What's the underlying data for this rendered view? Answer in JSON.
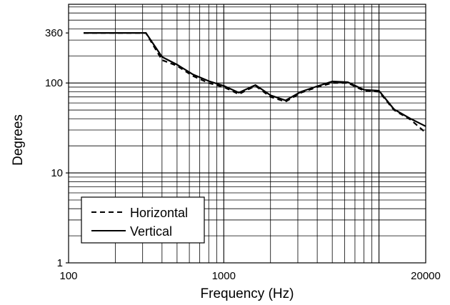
{
  "chart_data": {
    "type": "line",
    "title": "",
    "xlabel": "Frequency (Hz)",
    "ylabel": "Degrees",
    "x_scale": "log",
    "y_scale": "log",
    "xlim": [
      100,
      20000
    ],
    "ylim": [
      1,
      750
    ],
    "x_ticks": [
      {
        "value": 100,
        "label": "100"
      },
      {
        "value": 1000,
        "label": "1000"
      },
      {
        "value": 20000,
        "label": "20000"
      }
    ],
    "y_ticks": [
      {
        "value": 1,
        "label": "1"
      },
      {
        "value": 10,
        "label": "10"
      },
      {
        "value": 100,
        "label": "100"
      },
      {
        "value": 360,
        "label": "360"
      }
    ],
    "grid": true,
    "legend_position": "bottom-left",
    "series": [
      {
        "name": "Horizontal",
        "style": "dashed",
        "color": "#000000",
        "x": [
          125,
          160,
          200,
          250,
          315,
          400,
          500,
          630,
          800,
          1000,
          1250,
          1600,
          2000,
          2500,
          3150,
          4000,
          5000,
          6300,
          8000,
          10000,
          12500,
          16000,
          20000
        ],
        "y": [
          360,
          360,
          360,
          360,
          360,
          180,
          155,
          120,
          100,
          90,
          75,
          93,
          70,
          62,
          78,
          90,
          100,
          100,
          82,
          80,
          50,
          39,
          28
        ]
      },
      {
        "name": "Vertical",
        "style": "solid",
        "color": "#000000",
        "x": [
          125,
          160,
          200,
          250,
          315,
          400,
          500,
          630,
          800,
          1000,
          1250,
          1600,
          2000,
          2500,
          3150,
          4000,
          5000,
          6300,
          8000,
          10000,
          12500,
          16000,
          20000
        ],
        "y": [
          360,
          360,
          360,
          360,
          360,
          195,
          160,
          125,
          105,
          93,
          78,
          95,
          73,
          64,
          80,
          92,
          104,
          102,
          84,
          82,
          51,
          40,
          33
        ]
      }
    ]
  }
}
